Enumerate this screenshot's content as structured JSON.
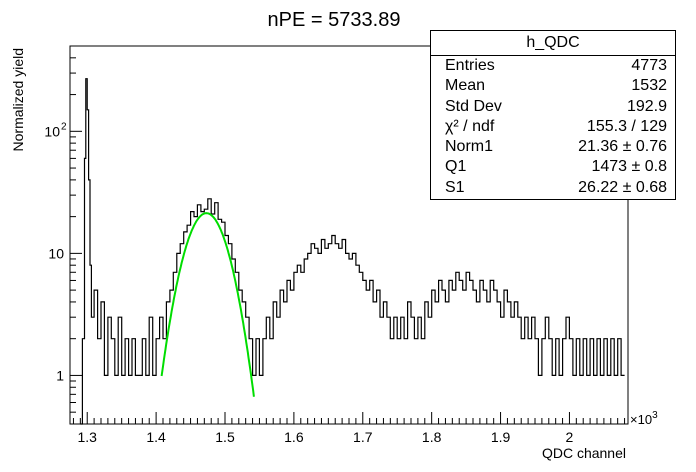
{
  "title": "nPE = 5733.89",
  "chart_data": {
    "type": "line",
    "title": "nPE = 5733.89",
    "xlabel": "QDC channel",
    "ylabel": "Normalized yield",
    "x_multiplier": "×10^3",
    "x_range": [
      1.275,
      2.085
    ],
    "y_range_log": [
      0.4,
      500
    ],
    "y_scale": "log",
    "x_ticks": [
      "1.3",
      "1.4",
      "1.5",
      "1.6",
      "1.7",
      "1.8",
      "1.9",
      "2"
    ],
    "y_ticks": [
      "1",
      "10",
      "10^2"
    ],
    "grid": false,
    "series": [
      {
        "name": "h_QDC",
        "color": "#000000",
        "points": [
          [
            1.29,
            0.4
          ],
          [
            1.293,
            2
          ],
          [
            1.296,
            60
          ],
          [
            1.298,
            270
          ],
          [
            1.3,
            150
          ],
          [
            1.302,
            40
          ],
          [
            1.304,
            8
          ],
          [
            1.306,
            3
          ],
          [
            1.31,
            5
          ],
          [
            1.315,
            2
          ],
          [
            1.32,
            4
          ],
          [
            1.325,
            1
          ],
          [
            1.33,
            3
          ],
          [
            1.335,
            2
          ],
          [
            1.34,
            1
          ],
          [
            1.345,
            3
          ],
          [
            1.35,
            1
          ],
          [
            1.355,
            2
          ],
          [
            1.36,
            1
          ],
          [
            1.365,
            2
          ],
          [
            1.37,
            1
          ],
          [
            1.375,
            1
          ],
          [
            1.38,
            2
          ],
          [
            1.385,
            1
          ],
          [
            1.39,
            3
          ],
          [
            1.395,
            1
          ],
          [
            1.4,
            2
          ],
          [
            1.405,
            3
          ],
          [
            1.41,
            2
          ],
          [
            1.415,
            4
          ],
          [
            1.42,
            5
          ],
          [
            1.425,
            7
          ],
          [
            1.43,
            10
          ],
          [
            1.435,
            12
          ],
          [
            1.44,
            15
          ],
          [
            1.445,
            17
          ],
          [
            1.45,
            22
          ],
          [
            1.455,
            20
          ],
          [
            1.46,
            25
          ],
          [
            1.465,
            22
          ],
          [
            1.47,
            23
          ],
          [
            1.475,
            28
          ],
          [
            1.48,
            21
          ],
          [
            1.485,
            26
          ],
          [
            1.49,
            19
          ],
          [
            1.495,
            18
          ],
          [
            1.5,
            14
          ],
          [
            1.505,
            12
          ],
          [
            1.51,
            9
          ],
          [
            1.515,
            7
          ],
          [
            1.52,
            5
          ],
          [
            1.525,
            4
          ],
          [
            1.53,
            3
          ],
          [
            1.535,
            2
          ],
          [
            1.54,
            1
          ],
          [
            1.545,
            2
          ],
          [
            1.55,
            1
          ],
          [
            1.555,
            2
          ],
          [
            1.56,
            3
          ],
          [
            1.565,
            2
          ],
          [
            1.57,
            4
          ],
          [
            1.575,
            3
          ],
          [
            1.58,
            5
          ],
          [
            1.585,
            4
          ],
          [
            1.59,
            6
          ],
          [
            1.595,
            5
          ],
          [
            1.6,
            7
          ],
          [
            1.605,
            8
          ],
          [
            1.61,
            7
          ],
          [
            1.615,
            9
          ],
          [
            1.62,
            10
          ],
          [
            1.625,
            12
          ],
          [
            1.63,
            11
          ],
          [
            1.635,
            10
          ],
          [
            1.64,
            13
          ],
          [
            1.645,
            11
          ],
          [
            1.65,
            12
          ],
          [
            1.655,
            14
          ],
          [
            1.66,
            12
          ],
          [
            1.665,
            11
          ],
          [
            1.67,
            13
          ],
          [
            1.675,
            10
          ],
          [
            1.68,
            9
          ],
          [
            1.685,
            10
          ],
          [
            1.69,
            8
          ],
          [
            1.695,
            7
          ],
          [
            1.7,
            6
          ],
          [
            1.705,
            5
          ],
          [
            1.71,
            6
          ],
          [
            1.715,
            4
          ],
          [
            1.72,
            5
          ],
          [
            1.725,
            3
          ],
          [
            1.73,
            4
          ],
          [
            1.735,
            3
          ],
          [
            1.74,
            2
          ],
          [
            1.745,
            3
          ],
          [
            1.75,
            2
          ],
          [
            1.755,
            3
          ],
          [
            1.76,
            2
          ],
          [
            1.765,
            4
          ],
          [
            1.77,
            3
          ],
          [
            1.775,
            2
          ],
          [
            1.78,
            3
          ],
          [
            1.785,
            2
          ],
          [
            1.79,
            4
          ],
          [
            1.795,
            3
          ],
          [
            1.8,
            5
          ],
          [
            1.805,
            4
          ],
          [
            1.81,
            6
          ],
          [
            1.815,
            5
          ],
          [
            1.82,
            4
          ],
          [
            1.825,
            6
          ],
          [
            1.83,
            5
          ],
          [
            1.835,
            7
          ],
          [
            1.84,
            6
          ],
          [
            1.845,
            5
          ],
          [
            1.85,
            7
          ],
          [
            1.855,
            6
          ],
          [
            1.86,
            5
          ],
          [
            1.865,
            4
          ],
          [
            1.87,
            6
          ],
          [
            1.875,
            5
          ],
          [
            1.88,
            4
          ],
          [
            1.885,
            6
          ],
          [
            1.89,
            5
          ],
          [
            1.895,
            4
          ],
          [
            1.9,
            3
          ],
          [
            1.905,
            5
          ],
          [
            1.91,
            4
          ],
          [
            1.915,
            3
          ],
          [
            1.92,
            4
          ],
          [
            1.925,
            3
          ],
          [
            1.93,
            2
          ],
          [
            1.935,
            3
          ],
          [
            1.94,
            2
          ],
          [
            1.945,
            3
          ],
          [
            1.95,
            2
          ],
          [
            1.955,
            1
          ],
          [
            1.96,
            2
          ],
          [
            1.965,
            3
          ],
          [
            1.97,
            2
          ],
          [
            1.975,
            1
          ],
          [
            1.98,
            2
          ],
          [
            1.985,
            1
          ],
          [
            1.99,
            2
          ],
          [
            1.995,
            3
          ],
          [
            2.0,
            2
          ],
          [
            2.005,
            1
          ],
          [
            2.01,
            2
          ],
          [
            2.015,
            1
          ],
          [
            2.02,
            2
          ],
          [
            2.025,
            1
          ],
          [
            2.03,
            2
          ],
          [
            2.035,
            1
          ],
          [
            2.04,
            2
          ],
          [
            2.045,
            1
          ],
          [
            2.05,
            2
          ],
          [
            2.055,
            1
          ],
          [
            2.06,
            2
          ],
          [
            2.065,
            1
          ],
          [
            2.07,
            2
          ],
          [
            2.075,
            1
          ]
        ]
      },
      {
        "name": "gauss fit",
        "color": "#00dd00",
        "function": "gaussian",
        "norm": 21.36,
        "mean": 1.473,
        "sigma": 0.02622,
        "x_from": 1.408,
        "x_to": 1.542
      }
    ]
  },
  "stats": {
    "title": "h_QDC",
    "rows": [
      {
        "label": "Entries",
        "value": "4773"
      },
      {
        "label": "Mean",
        "value": "1532"
      },
      {
        "label": "Std Dev",
        "value": "192.9"
      },
      {
        "label": "χ² / ndf",
        "value": "155.3 / 129"
      },
      {
        "label": "Norm1",
        "value": "21.36 ± 0.76"
      },
      {
        "label": "Q1",
        "value": "1473 ± 0.8"
      },
      {
        "label": "S1",
        "value": "26.22 ± 0.68"
      }
    ]
  }
}
